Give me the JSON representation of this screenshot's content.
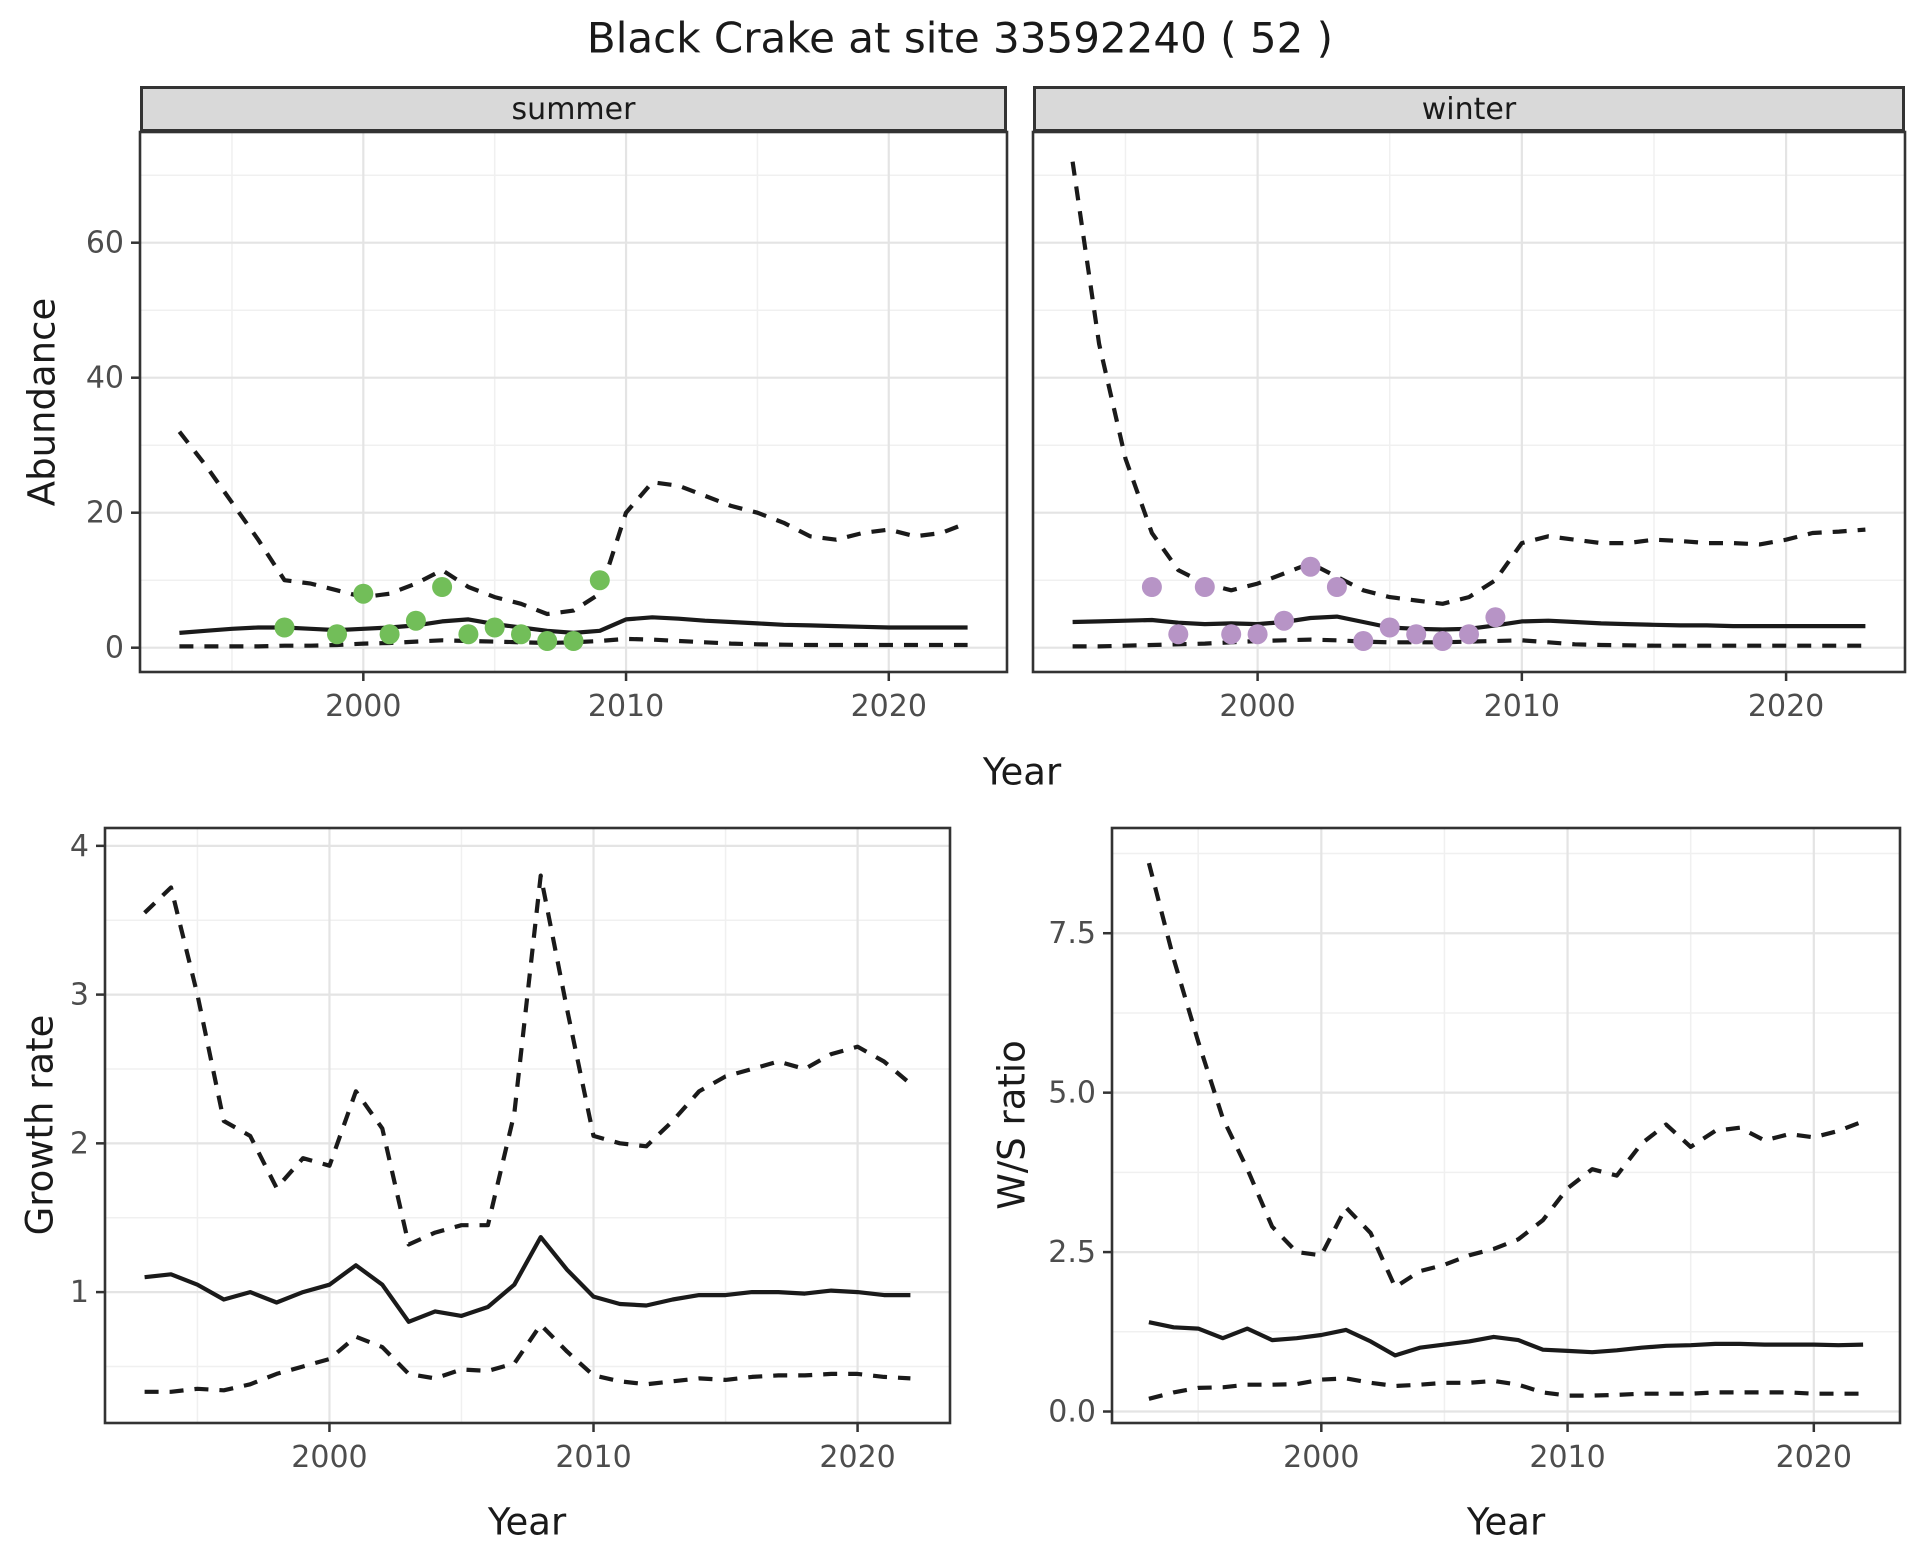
{
  "title": "Black Crake at site 33592240 ( 52 )",
  "colors": {
    "line": "#1a1a1a",
    "summer_points": "#72be59",
    "winter_points": "#b794c6",
    "strip_bg": "#d9d9d9",
    "panel_border": "#333333",
    "grid_major": "#e4e4e4",
    "grid_minor": "#f0f0f0",
    "axis_text": "#4d4d4d"
  },
  "chart_data": [
    {
      "id": "abundance_summer",
      "type": "line",
      "facet_label": "summer",
      "ylabel": "Abundance",
      "xlabel": "Year",
      "xlim": [
        1991.5,
        2024.5
      ],
      "ylim": [
        -3.6,
        76.4
      ],
      "xticks": [
        2000,
        2010,
        2020
      ],
      "xtick_labels": [
        "2000",
        "2010",
        "2020"
      ],
      "xticks_minor": [
        1995,
        2005,
        2015
      ],
      "yticks": [
        0,
        20,
        40,
        60
      ],
      "ytick_labels": [
        "0",
        "20",
        "40",
        "60"
      ],
      "yticks_minor": [
        10,
        30,
        50,
        70
      ],
      "x": [
        1993,
        1994,
        1995,
        1996,
        1997,
        1998,
        1999,
        2000,
        2001,
        2002,
        2003,
        2004,
        2005,
        2006,
        2007,
        2008,
        2009,
        2010,
        2011,
        2012,
        2013,
        2014,
        2015,
        2016,
        2017,
        2018,
        2019,
        2020,
        2021,
        2022,
        2023
      ],
      "series": [
        {
          "name": "upper 95% CI",
          "style": "dashed",
          "values": [
            32,
            27,
            21.5,
            16,
            10,
            9.5,
            8.5,
            7.5,
            8,
            9.5,
            11.5,
            9,
            7.5,
            6.5,
            5,
            5.5,
            8,
            20,
            24.5,
            24,
            22.5,
            21,
            20,
            18.5,
            16.5,
            16,
            17,
            17.5,
            16.5,
            17,
            18.5
          ]
        },
        {
          "name": "median",
          "style": "solid",
          "values": [
            2.2,
            2.5,
            2.8,
            3,
            3,
            2.8,
            2.6,
            2.8,
            3,
            3.3,
            3.9,
            4.2,
            3.5,
            3,
            2.5,
            2.2,
            2.5,
            4.2,
            4.5,
            4.3,
            4,
            3.8,
            3.6,
            3.4,
            3.3,
            3.2,
            3.1,
            3,
            3,
            3,
            3
          ]
        },
        {
          "name": "lower 95% CI",
          "style": "dashed",
          "values": [
            0.2,
            0.2,
            0.2,
            0.2,
            0.3,
            0.3,
            0.4,
            0.6,
            0.7,
            0.9,
            1.1,
            1,
            0.9,
            0.8,
            0.7,
            0.8,
            1,
            1.3,
            1.2,
            1,
            0.8,
            0.6,
            0.5,
            0.45,
            0.4,
            0.4,
            0.4,
            0.4,
            0.4,
            0.4,
            0.4
          ]
        }
      ],
      "points": {
        "name": "observed counts (summer)",
        "color": "#72be59",
        "data": [
          [
            1997,
            3
          ],
          [
            1999,
            2
          ],
          [
            2000,
            8
          ],
          [
            2001,
            2
          ],
          [
            2002,
            4
          ],
          [
            2003,
            9
          ],
          [
            2004,
            2
          ],
          [
            2005,
            3
          ],
          [
            2006,
            2
          ],
          [
            2007,
            1
          ],
          [
            2008,
            1
          ],
          [
            2009,
            10
          ]
        ]
      }
    },
    {
      "id": "abundance_winter",
      "type": "line",
      "facet_label": "winter",
      "ylabel": "Abundance",
      "xlabel": "Year",
      "xlim": [
        1991.5,
        2024.5
      ],
      "ylim": [
        -3.6,
        76.4
      ],
      "xticks": [
        2000,
        2010,
        2020
      ],
      "xtick_labels": [
        "2000",
        "2010",
        "2020"
      ],
      "xticks_minor": [
        1995,
        2005,
        2015
      ],
      "yticks": [
        0,
        20,
        40,
        60
      ],
      "ytick_labels": [
        "0",
        "20",
        "40",
        "60"
      ],
      "yticks_minor": [
        10,
        30,
        50,
        70
      ],
      "x": [
        1993,
        1994,
        1995,
        1996,
        1997,
        1998,
        1999,
        2000,
        2001,
        2002,
        2003,
        2004,
        2005,
        2006,
        2007,
        2008,
        2009,
        2010,
        2011,
        2012,
        2013,
        2014,
        2015,
        2016,
        2017,
        2018,
        2019,
        2020,
        2021,
        2022,
        2023
      ],
      "series": [
        {
          "name": "upper 95% CI",
          "style": "dashed",
          "values": [
            72,
            45,
            28,
            17,
            11.5,
            9.5,
            8.5,
            9.5,
            11,
            12.5,
            10.5,
            8.5,
            7.5,
            7,
            6.5,
            7.5,
            10,
            15.5,
            16.5,
            16,
            15.5,
            15.5,
            16,
            15.8,
            15.5,
            15.5,
            15.3,
            16,
            17,
            17.2,
            17.5
          ]
        },
        {
          "name": "median",
          "style": "solid",
          "values": [
            3.8,
            3.9,
            4,
            4.1,
            3.7,
            3.5,
            3.6,
            3.5,
            3.8,
            4.4,
            4.6,
            3.8,
            3,
            2.8,
            2.7,
            2.8,
            3.3,
            3.9,
            4,
            3.8,
            3.6,
            3.5,
            3.4,
            3.3,
            3.3,
            3.2,
            3.2,
            3.2,
            3.2,
            3.2,
            3.2
          ]
        },
        {
          "name": "lower 95% CI",
          "style": "dashed",
          "values": [
            0.2,
            0.2,
            0.3,
            0.4,
            0.5,
            0.6,
            0.8,
            1,
            1.1,
            1.2,
            1.1,
            0.9,
            0.8,
            0.8,
            0.8,
            0.9,
            1,
            1.1,
            0.8,
            0.5,
            0.4,
            0.35,
            0.3,
            0.3,
            0.3,
            0.3,
            0.3,
            0.3,
            0.3,
            0.3,
            0.3
          ]
        }
      ],
      "points": {
        "name": "observed counts (winter)",
        "color": "#b794c6",
        "data": [
          [
            1996,
            9
          ],
          [
            1997,
            2
          ],
          [
            1998,
            9
          ],
          [
            1999,
            2
          ],
          [
            2000,
            2
          ],
          [
            2001,
            4
          ],
          [
            2002,
            12
          ],
          [
            2003,
            9
          ],
          [
            2004,
            1
          ],
          [
            2005,
            3
          ],
          [
            2006,
            2
          ],
          [
            2007,
            1
          ],
          [
            2008,
            2
          ],
          [
            2009,
            4.5
          ]
        ]
      }
    },
    {
      "id": "growth_rate",
      "type": "line",
      "facet_label": "",
      "ylabel": "Growth rate",
      "xlabel": "Year",
      "xlim": [
        1991.5,
        2023.5
      ],
      "ylim": [
        0.12,
        4.12
      ],
      "xticks": [
        2000,
        2010,
        2020
      ],
      "xtick_labels": [
        "2000",
        "2010",
        "2020"
      ],
      "xticks_minor": [
        1995,
        2005,
        2015
      ],
      "yticks": [
        1,
        2,
        3,
        4
      ],
      "ytick_labels": [
        "1",
        "2",
        "3",
        "4"
      ],
      "yticks_minor": [
        0.5,
        1.5,
        2.5,
        3.5
      ],
      "x": [
        1993,
        1994,
        1995,
        1996,
        1997,
        1998,
        1999,
        2000,
        2001,
        2002,
        2003,
        2004,
        2005,
        2006,
        2007,
        2008,
        2009,
        2010,
        2011,
        2012,
        2013,
        2014,
        2015,
        2016,
        2017,
        2018,
        2019,
        2020,
        2021,
        2022
      ],
      "series": [
        {
          "name": "upper 95% CI",
          "style": "dashed",
          "values": [
            3.55,
            3.72,
            3.0,
            2.15,
            2.05,
            1.7,
            1.9,
            1.85,
            2.35,
            2.1,
            1.32,
            1.4,
            1.45,
            1.45,
            2.2,
            3.8,
            2.9,
            2.05,
            2.0,
            1.98,
            2.15,
            2.35,
            2.45,
            2.5,
            2.55,
            2.5,
            2.6,
            2.65,
            2.55,
            2.4
          ]
        },
        {
          "name": "median",
          "style": "solid",
          "values": [
            1.1,
            1.12,
            1.05,
            0.95,
            1.0,
            0.93,
            1.0,
            1.05,
            1.18,
            1.05,
            0.8,
            0.87,
            0.84,
            0.9,
            1.05,
            1.37,
            1.15,
            0.97,
            0.92,
            0.91,
            0.95,
            0.98,
            0.98,
            1.0,
            1.0,
            0.99,
            1.01,
            1.0,
            0.98,
            0.98
          ]
        },
        {
          "name": "lower 95% CI",
          "style": "dashed",
          "values": [
            0.33,
            0.33,
            0.35,
            0.34,
            0.38,
            0.45,
            0.5,
            0.55,
            0.7,
            0.63,
            0.45,
            0.42,
            0.48,
            0.47,
            0.52,
            0.78,
            0.6,
            0.44,
            0.4,
            0.38,
            0.4,
            0.42,
            0.41,
            0.43,
            0.44,
            0.44,
            0.45,
            0.45,
            0.43,
            0.42
          ]
        }
      ]
    },
    {
      "id": "ws_ratio",
      "type": "line",
      "facet_label": "",
      "ylabel": "W/S ratio",
      "xlabel": "Year",
      "xlim": [
        1991.5,
        2023.5
      ],
      "ylim": [
        -0.18,
        9.15
      ],
      "xticks": [
        2000,
        2010,
        2020
      ],
      "xtick_labels": [
        "2000",
        "2010",
        "2020"
      ],
      "xticks_minor": [
        1995,
        2005,
        2015
      ],
      "yticks": [
        0,
        2.5,
        5,
        7.5
      ],
      "ytick_labels": [
        "0.0",
        "2.5",
        "5.0",
        "7.5"
      ],
      "yticks_minor": [
        1.25,
        3.75,
        6.25,
        8.75
      ],
      "x": [
        1993,
        1994,
        1995,
        1996,
        1997,
        1998,
        1999,
        2000,
        2001,
        2002,
        2003,
        2004,
        2005,
        2006,
        2007,
        2008,
        2009,
        2010,
        2011,
        2012,
        2013,
        2014,
        2015,
        2016,
        2017,
        2018,
        2019,
        2020,
        2021,
        2022
      ],
      "series": [
        {
          "name": "upper 95% CI",
          "style": "dashed",
          "values": [
            8.6,
            7.1,
            5.8,
            4.6,
            3.8,
            2.9,
            2.5,
            2.45,
            3.2,
            2.8,
            1.95,
            2.2,
            2.3,
            2.45,
            2.55,
            2.7,
            3.0,
            3.5,
            3.8,
            3.7,
            4.2,
            4.5,
            4.15,
            4.4,
            4.45,
            4.25,
            4.35,
            4.3,
            4.4,
            4.55
          ]
        },
        {
          "name": "median",
          "style": "solid",
          "values": [
            1.4,
            1.32,
            1.3,
            1.15,
            1.3,
            1.12,
            1.15,
            1.2,
            1.28,
            1.1,
            0.88,
            1.0,
            1.05,
            1.1,
            1.17,
            1.12,
            0.97,
            0.95,
            0.93,
            0.96,
            1.0,
            1.03,
            1.04,
            1.06,
            1.06,
            1.05,
            1.05,
            1.05,
            1.04,
            1.05
          ]
        },
        {
          "name": "lower 95% CI",
          "style": "dashed",
          "values": [
            0.2,
            0.3,
            0.37,
            0.38,
            0.42,
            0.42,
            0.43,
            0.5,
            0.52,
            0.45,
            0.4,
            0.42,
            0.45,
            0.45,
            0.48,
            0.42,
            0.3,
            0.25,
            0.25,
            0.26,
            0.28,
            0.28,
            0.28,
            0.3,
            0.3,
            0.3,
            0.3,
            0.28,
            0.28,
            0.28
          ]
        }
      ]
    }
  ]
}
